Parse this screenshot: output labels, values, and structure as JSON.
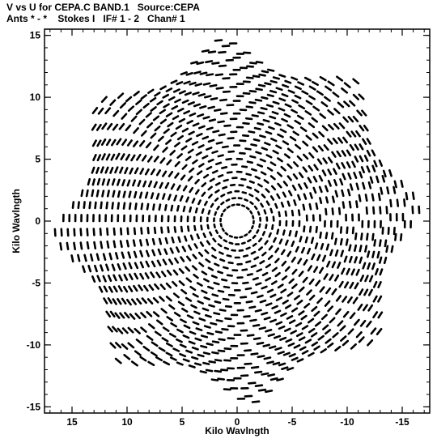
{
  "header": {
    "line1": "V vs U for CEPA.C BAND.1   Source:CEPA",
    "line2": "Ants * - *    Stokes I   IF# 1 - 2   Chan# 1"
  },
  "chart_data": {
    "type": "scatter",
    "title": "V vs U for CEPA.C BAND.1   Source:CEPA",
    "subtitle": "Ants * - *    Stokes I   IF# 1 - 2   Chan# 1",
    "xlabel": "Kilo Wavlngth",
    "ylabel": "Kilo Wavlngth",
    "xlim": [
      17.5,
      -17.5
    ],
    "ylim": [
      -15.5,
      15.5
    ],
    "x_reversed": true,
    "x_ticks": [
      15,
      10,
      5,
      0,
      -5,
      -10,
      -15
    ],
    "x_tick_labels": [
      "15",
      "10",
      "5",
      "0",
      "-5",
      "-10",
      "-15"
    ],
    "y_ticks": [
      -15,
      -10,
      -5,
      0,
      5,
      10,
      15
    ],
    "y_tick_labels": [
      "-15",
      "-10",
      "-5",
      "0",
      "5",
      "10",
      "15"
    ],
    "grid": false,
    "legend": "none",
    "color": "#000000",
    "description_of_points": "UV coverage: elliptical tracks of short dashes, symmetric about the origin, with lobed outer boundary reaching about |u|=17 and |v|=15"
  }
}
